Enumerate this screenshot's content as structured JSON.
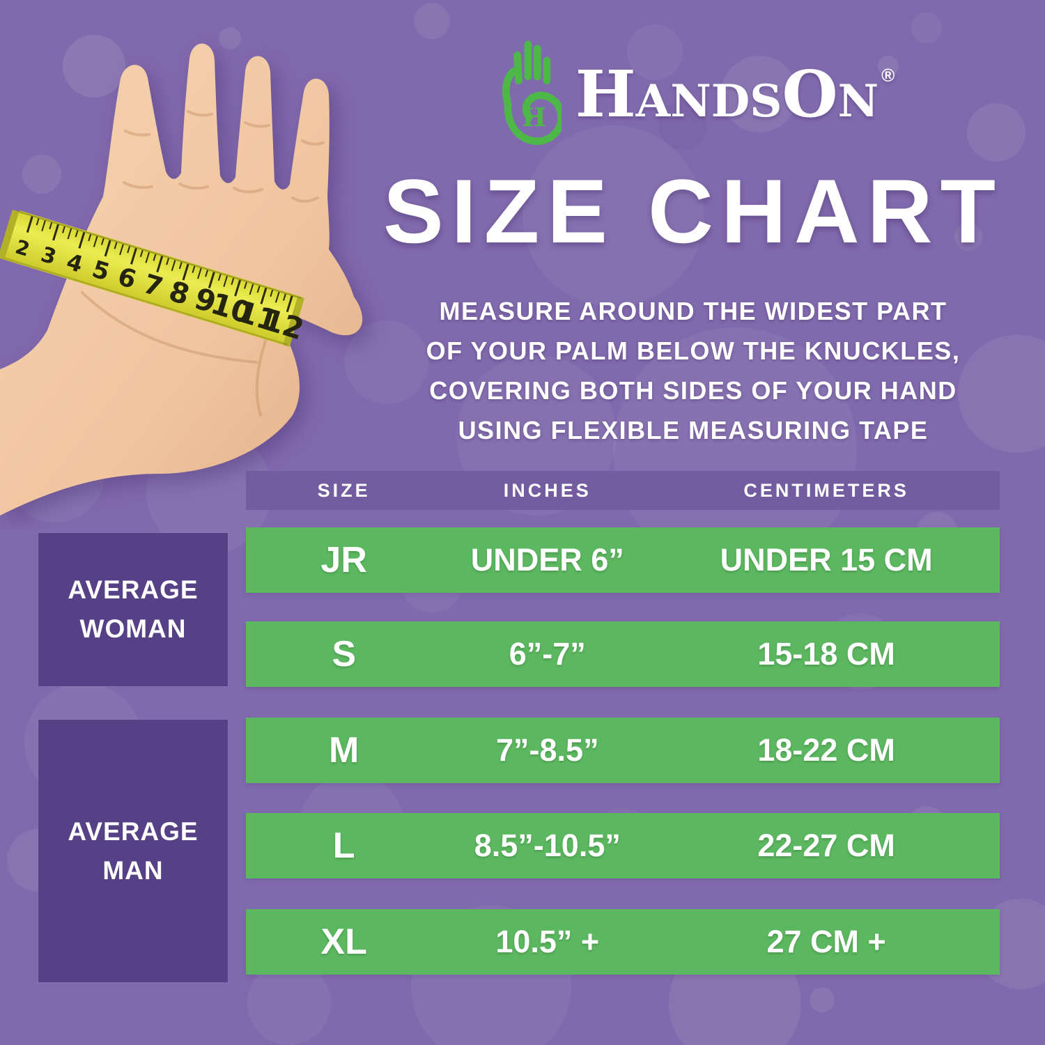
{
  "brand": {
    "name": "HandsOn",
    "wordmark_parts": {
      "h": "H",
      "ands": "ANDS",
      "o": "O",
      "n": "N"
    },
    "registered": "®",
    "logo_hand_letter": "H"
  },
  "title": "SIZE CHART",
  "instructions_lines": [
    "MEASURE AROUND THE WIDEST PART",
    "OF YOUR PALM BELOW THE KNUCKLES,",
    "COVERING BOTH SIDES OF YOUR HAND",
    "USING FLEXIBLE MEASURING TAPE"
  ],
  "measuring_tape_numbers": [
    "2",
    "3",
    "4",
    "5",
    "6",
    "7",
    "8",
    "9",
    "10",
    "11",
    "12"
  ],
  "table": {
    "headers": [
      "SIZE",
      "INCHES",
      "CENTIMETERS"
    ],
    "rows": [
      {
        "size": "JR",
        "inches": "UNDER 6”",
        "centimeters": "UNDER 15 CM"
      },
      {
        "size": "S",
        "inches": "6”-7”",
        "centimeters": "15-18 CM"
      },
      {
        "size": "M",
        "inches": "7”-8.5”",
        "centimeters": "18-22 CM"
      },
      {
        "size": "L",
        "inches": "8.5”-10.5”",
        "centimeters": "22-27 CM"
      },
      {
        "size": "XL",
        "inches": "10.5” +",
        "centimeters": "27 CM +"
      }
    ],
    "groups": [
      {
        "label_lines": [
          "AVERAGE",
          "WOMAN"
        ],
        "rows": [
          "JR",
          "S"
        ]
      },
      {
        "label_lines": [
          "AVERAGE",
          "MAN"
        ],
        "rows": [
          "M",
          "L",
          "XL"
        ]
      }
    ]
  },
  "colors": {
    "background_purple": "#8069ac",
    "header_band_purple": "#745ca0",
    "row_green": "#5cb860",
    "group_box_purple": "#564187",
    "logo_green": "#4db848",
    "tape_yellow": "#e2e03c",
    "text_white": "#ffffff"
  },
  "chart_data": {
    "type": "table",
    "title": "SIZE CHART",
    "columns": [
      "SIZE",
      "INCHES",
      "CENTIMETERS"
    ],
    "rows": [
      [
        "JR",
        "UNDER 6”",
        "UNDER 15 CM"
      ],
      [
        "S",
        "6”-7”",
        "15-18 CM"
      ],
      [
        "M",
        "7”-8.5”",
        "18-22 CM"
      ],
      [
        "L",
        "8.5”-10.5”",
        "22-27 CM"
      ],
      [
        "XL",
        "10.5” +",
        "27 CM +"
      ]
    ],
    "row_groups": [
      {
        "label": "AVERAGE WOMAN",
        "rows": [
          "JR",
          "S"
        ]
      },
      {
        "label": "AVERAGE MAN",
        "rows": [
          "M",
          "L",
          "XL"
        ]
      }
    ]
  }
}
